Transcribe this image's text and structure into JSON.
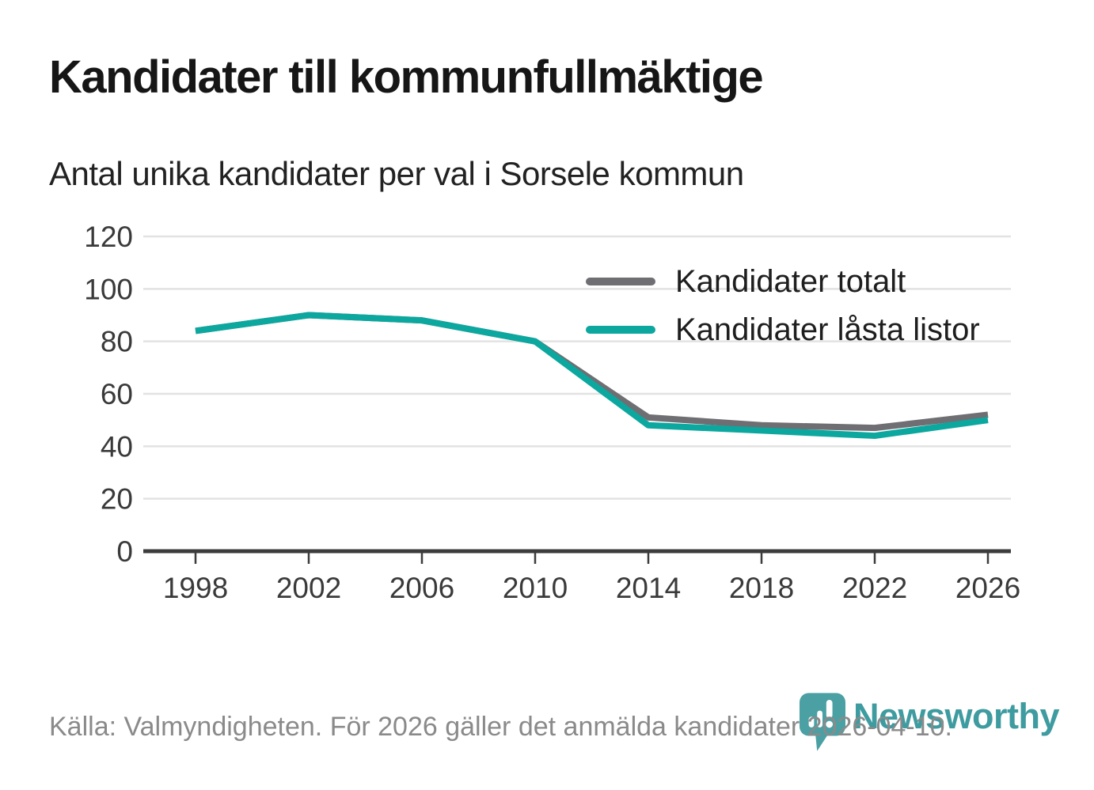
{
  "header": {
    "title": "Kandidater till kommunfullmäktige",
    "subtitle": "Antal unika kandidater per val i Sorsele kommun"
  },
  "chart_data": {
    "type": "line",
    "x": [
      1998,
      2002,
      2006,
      2010,
      2014,
      2018,
      2022,
      2026
    ],
    "series": [
      {
        "name": "Kandidater totalt",
        "color": "#6F6E72",
        "values": [
          84,
          90,
          88,
          80,
          51,
          48,
          47,
          52
        ]
      },
      {
        "name": "Kandidater låsta listor",
        "color": "#0CA79E",
        "values": [
          84,
          90,
          88,
          80,
          48,
          46,
          44,
          50
        ]
      }
    ],
    "ylim": [
      0,
      120
    ],
    "yticks": [
      0,
      20,
      40,
      60,
      80,
      100,
      120
    ],
    "grid": "horizontal",
    "legend_position": "top-right-inside",
    "title": "Kandidater till kommunfullmäktige",
    "subtitle": "Antal unika kandidater per val i Sorsele kommun",
    "xlabel": "",
    "ylabel": ""
  },
  "legend": {
    "items": [
      {
        "label": "Kandidater totalt",
        "color": "#6F6E72"
      },
      {
        "label": "Kandidater låsta listor",
        "color": "#0CA79E"
      }
    ]
  },
  "footer": {
    "source": "Källa: Valmyndigheten. För 2026 gäller det anmälda kandidater 2026-04-10."
  },
  "logo": {
    "text": "Newsworthy",
    "icon": "newsworthy-pin-bar-chart-icon",
    "icon_color": "#4AA0A3",
    "text_color": "#3E9BA0"
  },
  "style_colors": {
    "grid": "#E2E2E2",
    "axis": "#3C3C3C",
    "tick_label": "#3A3A3A",
    "title": "#161616",
    "subtitle": "#222222",
    "footer": "#8A8A8A"
  }
}
